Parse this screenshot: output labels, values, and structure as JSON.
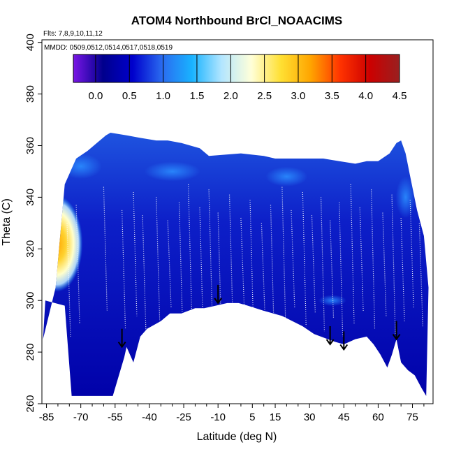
{
  "chart_data": {
    "type": "heatmap",
    "title": "ATOM4 Northbound BrCl_NOAACIMS",
    "flights_note": "Flts: 7,8,9,10,11,12",
    "dates_note": "MMDD: 0509,0512,0514,0517,0518,0519",
    "xlabel": "Latitude (deg N)",
    "ylabel": "Theta (C)",
    "xlim": [
      -87,
      84
    ],
    "ylim": [
      260,
      401
    ],
    "x_ticks": [
      "-85",
      "-70",
      "-55",
      "-40",
      "-25",
      "-10",
      "5",
      "15",
      "30",
      "45",
      "60",
      "75"
    ],
    "x_tick_values": [
      -85,
      -70,
      -55,
      -40,
      -25,
      -10,
      5,
      15,
      30,
      45,
      60,
      75
    ],
    "y_ticks": [
      "260",
      "280",
      "300",
      "320",
      "340",
      "360",
      "380",
      "400"
    ],
    "y_tick_values": [
      260,
      280,
      300,
      320,
      340,
      360,
      380,
      400
    ],
    "colorbar": {
      "min": -0.33,
      "max": 4.5,
      "tick_labels": [
        "0.0",
        "0.5",
        "1.0",
        "1.5",
        "2.0",
        "2.5",
        "3.0",
        "3.5",
        "4.0",
        "4.5"
      ],
      "tick_values": [
        0,
        0.5,
        1.0,
        1.5,
        2.0,
        2.5,
        3.0,
        3.5,
        4.0,
        4.5
      ],
      "colors": [
        "#7a16e6",
        "#00008c",
        "#0000cc",
        "#2a6cf0",
        "#19b3ff",
        "#b3e6ff",
        "#ffffd9",
        "#ffe033",
        "#ffa500",
        "#ff3300",
        "#cc0000",
        "#992020"
      ]
    },
    "data_envelope": {
      "lower_lat": [
        -85.5,
        -77,
        -74,
        -56,
        -51,
        -50,
        -47,
        -44,
        -41,
        -35,
        -31,
        -26,
        -20,
        -16,
        -11,
        -6,
        -1,
        3,
        10,
        18,
        27,
        32,
        38,
        41,
        45,
        50,
        55,
        58,
        61,
        64,
        66,
        68,
        70,
        73,
        76,
        79,
        81
      ],
      "lower_theta": [
        300,
        298,
        263,
        263,
        278,
        282,
        276,
        286,
        289,
        292,
        295,
        295,
        297,
        297,
        298,
        299,
        299,
        298,
        296,
        294,
        290,
        287,
        285,
        284,
        283,
        285,
        286,
        283,
        279,
        274,
        279,
        285,
        276,
        273,
        271,
        266,
        263
      ],
      "upper_lat": [
        -86.5,
        -81,
        -77,
        -72,
        -67,
        -63,
        -59,
        -57,
        -50,
        -44,
        -37,
        -32,
        -26,
        -22,
        -18,
        -14,
        0,
        10,
        15,
        20,
        24,
        28,
        36,
        43,
        50,
        55,
        60,
        65,
        68,
        70,
        72,
        74,
        77,
        80,
        82
      ],
      "upper_theta": [
        285,
        305,
        345,
        355,
        358,
        361,
        364,
        365,
        364,
        363,
        362,
        362,
        361,
        360,
        359,
        356,
        357,
        356,
        355,
        355,
        355,
        355,
        355,
        354,
        353,
        354,
        354,
        357,
        361,
        362,
        357,
        348,
        335,
        325,
        305
      ]
    },
    "high_value_region": {
      "lat_range": [
        -87,
        -68
      ],
      "theta_range": [
        305,
        338
      ],
      "peak_lat": -80.5,
      "peak_theta": 322,
      "peak_value": 3.3
    },
    "annotations": {
      "arrows": [
        {
          "lat": -52,
          "theta_tip": 282
        },
        {
          "lat": -10,
          "theta_tip": 299
        },
        {
          "lat": 39,
          "theta_tip": 283
        },
        {
          "lat": 45,
          "theta_tip": 281
        },
        {
          "lat": 68,
          "theta_tip": 285
        }
      ]
    },
    "grid": false
  }
}
